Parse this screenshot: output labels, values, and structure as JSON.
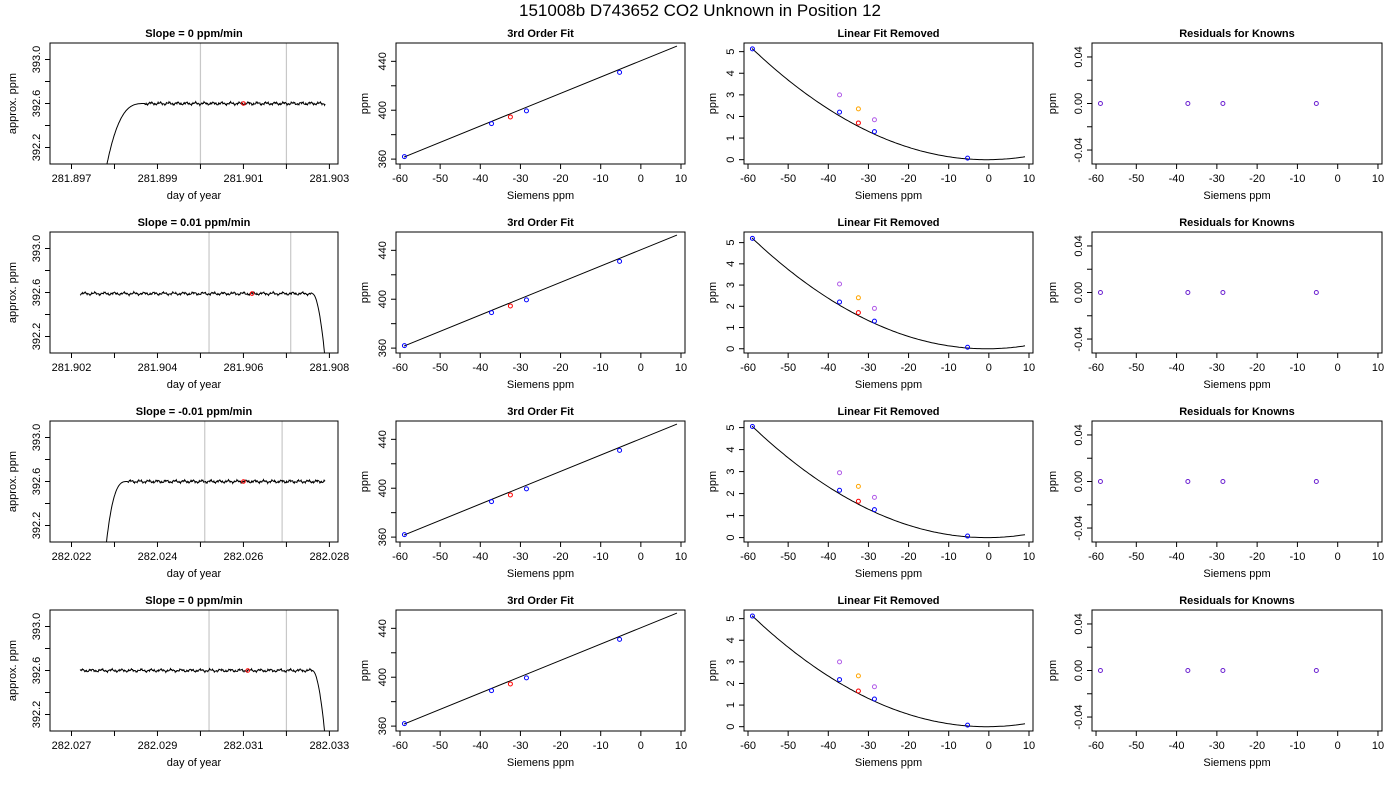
{
  "page": {
    "title": "151008b      D743652    CO2 Unknown in Position  12"
  },
  "colors": {
    "trace": "#000000",
    "cursor_lines": "#c8c8c8",
    "known_points": "#0000ff",
    "unknown_point": "#ff0000",
    "unknown_raw_orange": "#ffa500",
    "unknown_raw_violet": "#b05ae8",
    "residual_points": "#6a1fd0"
  },
  "chart_data": [
    {
      "type": "line",
      "row": 1,
      "col": 1,
      "title": "Slope =  0  ppm/min",
      "xlabel": "day of year",
      "ylabel": "approx. ppm",
      "xlim": [
        281.8965,
        281.9032
      ],
      "ylim": [
        392.05,
        393.15
      ],
      "xticks": [
        "281.897",
        "281.898",
        "281.899",
        "281.900",
        "281.901",
        "281.902",
        "281.903"
      ],
      "xtick_labels": [
        "281.897",
        "",
        "281.899",
        "",
        "281.901",
        "",
        "281.903"
      ],
      "yticks": [
        392.2,
        392.4,
        392.6,
        392.8,
        393.0
      ],
      "ytick_labels": [
        "392.2",
        "",
        "392.6",
        "",
        "393.0"
      ],
      "vlines": [
        281.9,
        281.902
      ],
      "trace": {
        "start": 281.8978,
        "end": 281.9029,
        "level": 392.6,
        "profile": "rise",
        "transition": 281.8987
      },
      "marker": {
        "x": 281.901,
        "y": 392.6
      }
    },
    {
      "type": "line",
      "row": 1,
      "col": 2,
      "title": "3rd Order Fit",
      "xlabel": "Siemens ppm",
      "ylabel": "ppm",
      "xlim": [
        -61,
        11
      ],
      "ylim": [
        356,
        455
      ],
      "xticks": [
        -60,
        -50,
        -40,
        -30,
        -20,
        -10,
        0,
        10
      ],
      "xtick_labels": [
        "-60",
        "-50",
        "-40",
        "-30",
        "-20",
        "-10",
        "0",
        "10"
      ],
      "yticks": [
        360,
        380,
        400,
        420,
        440
      ],
      "ytick_labels": [
        "360",
        "",
        "400",
        "",
        "440"
      ],
      "fit_line": {
        "x": [
          -59,
          9
        ],
        "y": [
          361.7,
          452.5
        ]
      },
      "knowns": [
        {
          "x": -58.9,
          "y": 362
        },
        {
          "x": -37.2,
          "y": 389
        },
        {
          "x": -28.5,
          "y": 399.5
        },
        {
          "x": -5.3,
          "y": 431
        }
      ],
      "unknown": {
        "x": -32.5,
        "y": 394.5
      }
    },
    {
      "type": "line",
      "row": 1,
      "col": 3,
      "title": "Linear Fit Removed",
      "xlabel": "Siemens ppm",
      "ylabel": "ppm",
      "xlim": [
        -61,
        11
      ],
      "ylim": [
        -0.2,
        5.4
      ],
      "xticks": [
        -60,
        -50,
        -40,
        -30,
        -20,
        -10,
        0,
        10
      ],
      "xtick_labels": [
        "-60",
        "-50",
        "-40",
        "-30",
        "-20",
        "-10",
        "0",
        "10"
      ],
      "yticks": [
        0,
        1,
        2,
        3,
        4,
        5
      ],
      "ytick_labels": [
        "0",
        "1",
        "2",
        "3",
        "4",
        "5"
      ],
      "curve": {
        "vertex": -0.5,
        "from": -59,
        "to": 9
      },
      "knowns": [
        {
          "x": -58.9,
          "y": 5.13
        },
        {
          "x": -37.2,
          "y": 2.2
        },
        {
          "x": -28.5,
          "y": 1.3
        },
        {
          "x": -5.3,
          "y": 0.07
        }
      ],
      "unknown": {
        "x": -32.5,
        "y": 1.7
      },
      "raw": [
        {
          "x": -32.5,
          "y": 2.35,
          "color": "orange"
        },
        {
          "x": -37.2,
          "y": 3.0,
          "color": "violet"
        },
        {
          "x": -28.5,
          "y": 1.85,
          "color": "violet"
        }
      ]
    },
    {
      "type": "scatter",
      "row": 1,
      "col": 4,
      "title": "Residuals for Knowns",
      "xlabel": "Siemens ppm",
      "ylabel": "ppm",
      "xlim": [
        -61,
        11
      ],
      "ylim": [
        -0.052,
        0.052
      ],
      "xticks": [
        -60,
        -50,
        -40,
        -30,
        -20,
        -10,
        0,
        10
      ],
      "xtick_labels": [
        "-60",
        "-50",
        "-40",
        "-30",
        "-20",
        "-10",
        "0",
        "10"
      ],
      "yticks": [
        -0.04,
        -0.02,
        0,
        0.02,
        0.04
      ],
      "ytick_labels": [
        "-0.04",
        "",
        "0.00",
        "",
        "0.04"
      ],
      "residuals": [
        {
          "x": -58.9,
          "y": 0
        },
        {
          "x": -37.2,
          "y": 0
        },
        {
          "x": -28.5,
          "y": 0
        },
        {
          "x": -5.3,
          "y": 0
        }
      ]
    },
    {
      "type": "line",
      "row": 2,
      "col": 1,
      "title": "Slope =  0.01  ppm/min",
      "xlabel": "day of year",
      "ylabel": "approx. ppm",
      "xlim": [
        281.9015,
        281.9082
      ],
      "ylim": [
        392.05,
        393.15
      ],
      "xticks": [
        "281.902",
        "281.903",
        "281.904",
        "281.905",
        "281.906",
        "281.907",
        "281.908"
      ],
      "xtick_labels": [
        "281.902",
        "",
        "281.904",
        "",
        "281.906",
        "",
        "281.908"
      ],
      "yticks": [
        392.2,
        392.4,
        392.6,
        392.8,
        393.0
      ],
      "ytick_labels": [
        "392.2",
        "",
        "392.6",
        "",
        "393.0"
      ],
      "vlines": [
        281.9052,
        281.9071
      ],
      "trace": {
        "start": 281.9022,
        "end": 281.9079,
        "level": 392.59,
        "profile": "fall",
        "transition": 281.9076
      },
      "marker": {
        "x": 281.9062,
        "y": 392.59
      }
    },
    {
      "type": "line",
      "row": 2,
      "col": 2,
      "title": "3rd Order Fit",
      "xlabel": "Siemens ppm",
      "ylabel": "ppm",
      "xlim": [
        -61,
        11
      ],
      "ylim": [
        356,
        455
      ],
      "xticks": [
        -60,
        -50,
        -40,
        -30,
        -20,
        -10,
        0,
        10
      ],
      "xtick_labels": [
        "-60",
        "-50",
        "-40",
        "-30",
        "-20",
        "-10",
        "0",
        "10"
      ],
      "yticks": [
        360,
        380,
        400,
        420,
        440
      ],
      "ytick_labels": [
        "360",
        "",
        "400",
        "",
        "440"
      ],
      "fit_line": {
        "x": [
          -59,
          9
        ],
        "y": [
          361.7,
          452.5
        ]
      },
      "knowns": [
        {
          "x": -58.9,
          "y": 362
        },
        {
          "x": -37.2,
          "y": 389
        },
        {
          "x": -28.5,
          "y": 399.5
        },
        {
          "x": -5.3,
          "y": 431
        }
      ],
      "unknown": {
        "x": -32.5,
        "y": 394.5
      }
    },
    {
      "type": "line",
      "row": 2,
      "col": 3,
      "title": "Linear Fit Removed",
      "xlabel": "Siemens ppm",
      "ylabel": "ppm",
      "xlim": [
        -61,
        11
      ],
      "ylim": [
        -0.2,
        5.5
      ],
      "xticks": [
        -60,
        -50,
        -40,
        -30,
        -20,
        -10,
        0,
        10
      ],
      "xtick_labels": [
        "-60",
        "-50",
        "-40",
        "-30",
        "-20",
        "-10",
        "0",
        "10"
      ],
      "yticks": [
        0,
        1,
        2,
        3,
        4,
        5
      ],
      "ytick_labels": [
        "0",
        "1",
        "2",
        "3",
        "4",
        "5"
      ],
      "curve": {
        "vertex": -0.5,
        "from": -59,
        "to": 9
      },
      "knowns": [
        {
          "x": -58.9,
          "y": 5.2
        },
        {
          "x": -37.2,
          "y": 2.2
        },
        {
          "x": -28.5,
          "y": 1.3
        },
        {
          "x": -5.3,
          "y": 0.07
        }
      ],
      "unknown": {
        "x": -32.5,
        "y": 1.7
      },
      "raw": [
        {
          "x": -32.5,
          "y": 2.4,
          "color": "orange"
        },
        {
          "x": -37.2,
          "y": 3.05,
          "color": "violet"
        },
        {
          "x": -28.5,
          "y": 1.9,
          "color": "violet"
        }
      ]
    },
    {
      "type": "scatter",
      "row": 2,
      "col": 4,
      "title": "Residuals for Knowns",
      "xlabel": "Siemens ppm",
      "ylabel": "ppm",
      "xlim": [
        -61,
        11
      ],
      "ylim": [
        -0.052,
        0.052
      ],
      "xticks": [
        -60,
        -50,
        -40,
        -30,
        -20,
        -10,
        0,
        10
      ],
      "xtick_labels": [
        "-60",
        "-50",
        "-40",
        "-30",
        "-20",
        "-10",
        "0",
        "10"
      ],
      "yticks": [
        -0.04,
        -0.02,
        0,
        0.02,
        0.04
      ],
      "ytick_labels": [
        "-0.04",
        "",
        "0.00",
        "",
        "0.04"
      ],
      "residuals": [
        {
          "x": -58.9,
          "y": 0
        },
        {
          "x": -37.2,
          "y": 0
        },
        {
          "x": -28.5,
          "y": 0
        },
        {
          "x": -5.3,
          "y": 0
        }
      ]
    },
    {
      "type": "line",
      "row": 3,
      "col": 1,
      "title": "Slope =  -0.01  ppm/min",
      "xlabel": "day of year",
      "ylabel": "approx. ppm",
      "xlim": [
        282.0215,
        282.0282
      ],
      "ylim": [
        392.05,
        393.15
      ],
      "xticks": [
        "282.022",
        "282.023",
        "282.024",
        "282.025",
        "282.026",
        "282.027",
        "282.028"
      ],
      "xtick_labels": [
        "282.022",
        "",
        "282.024",
        "",
        "282.026",
        "",
        "282.028"
      ],
      "yticks": [
        392.2,
        392.4,
        392.6,
        392.8,
        393.0
      ],
      "ytick_labels": [
        "392.2",
        "",
        "392.6",
        "",
        "393.0"
      ],
      "vlines": [
        282.0251,
        282.0269
      ],
      "trace": {
        "start": 282.0228,
        "end": 282.0279,
        "level": 392.6,
        "profile": "rise",
        "transition": 282.0233
      },
      "marker": {
        "x": 282.026,
        "y": 392.6
      }
    },
    {
      "type": "line",
      "row": 3,
      "col": 2,
      "title": "3rd Order Fit",
      "xlabel": "Siemens ppm",
      "ylabel": "ppm",
      "xlim": [
        -61,
        11
      ],
      "ylim": [
        356,
        455
      ],
      "xticks": [
        -60,
        -50,
        -40,
        -30,
        -20,
        -10,
        0,
        10
      ],
      "xtick_labels": [
        "-60",
        "-50",
        "-40",
        "-30",
        "-20",
        "-10",
        "0",
        "10"
      ],
      "yticks": [
        360,
        380,
        400,
        420,
        440
      ],
      "ytick_labels": [
        "360",
        "",
        "400",
        "",
        "440"
      ],
      "fit_line": {
        "x": [
          -59,
          9
        ],
        "y": [
          361.7,
          452.5
        ]
      },
      "knowns": [
        {
          "x": -58.9,
          "y": 362
        },
        {
          "x": -37.2,
          "y": 389
        },
        {
          "x": -28.5,
          "y": 399.5
        },
        {
          "x": -5.3,
          "y": 431
        }
      ],
      "unknown": {
        "x": -32.5,
        "y": 394.5
      }
    },
    {
      "type": "line",
      "row": 3,
      "col": 3,
      "title": "Linear Fit Removed",
      "xlabel": "Siemens ppm",
      "ylabel": "ppm",
      "xlim": [
        -61,
        11
      ],
      "ylim": [
        -0.2,
        5.3
      ],
      "xticks": [
        -60,
        -50,
        -40,
        -30,
        -20,
        -10,
        0,
        10
      ],
      "xtick_labels": [
        "-60",
        "-50",
        "-40",
        "-30",
        "-20",
        "-10",
        "0",
        "10"
      ],
      "yticks": [
        0,
        1,
        2,
        3,
        4,
        5
      ],
      "ytick_labels": [
        "0",
        "1",
        "2",
        "3",
        "4",
        "5"
      ],
      "curve": {
        "vertex": -0.5,
        "from": -59,
        "to": 9
      },
      "knowns": [
        {
          "x": -58.9,
          "y": 5.05
        },
        {
          "x": -37.2,
          "y": 2.15
        },
        {
          "x": -28.5,
          "y": 1.27
        },
        {
          "x": -5.3,
          "y": 0.07
        }
      ],
      "unknown": {
        "x": -32.5,
        "y": 1.65
      },
      "raw": [
        {
          "x": -32.5,
          "y": 2.33,
          "color": "orange"
        },
        {
          "x": -37.2,
          "y": 2.95,
          "color": "violet"
        },
        {
          "x": -28.5,
          "y": 1.83,
          "color": "violet"
        }
      ]
    },
    {
      "type": "scatter",
      "row": 3,
      "col": 4,
      "title": "Residuals for Knowns",
      "xlabel": "Siemens ppm",
      "ylabel": "ppm",
      "xlim": [
        -61,
        11
      ],
      "ylim": [
        -0.052,
        0.052
      ],
      "xticks": [
        -60,
        -50,
        -40,
        -30,
        -20,
        -10,
        0,
        10
      ],
      "xtick_labels": [
        "-60",
        "-50",
        "-40",
        "-30",
        "-20",
        "-10",
        "0",
        "10"
      ],
      "yticks": [
        -0.04,
        -0.02,
        0,
        0.02,
        0.04
      ],
      "ytick_labels": [
        "-0.04",
        "",
        "0.00",
        "",
        "0.04"
      ],
      "residuals": [
        {
          "x": -58.9,
          "y": 0
        },
        {
          "x": -37.2,
          "y": 0
        },
        {
          "x": -28.5,
          "y": 0
        },
        {
          "x": -5.3,
          "y": 0
        }
      ]
    },
    {
      "type": "line",
      "row": 4,
      "col": 1,
      "title": "Slope =  0  ppm/min",
      "xlabel": "day of year",
      "ylabel": "approx. ppm",
      "xlim": [
        282.0265,
        282.0332
      ],
      "ylim": [
        392.05,
        393.15
      ],
      "xticks": [
        "282.027",
        "282.028",
        "282.029",
        "282.030",
        "282.031",
        "282.032",
        "282.033"
      ],
      "xtick_labels": [
        "282.027",
        "",
        "282.029",
        "",
        "282.031",
        "",
        "282.033"
      ],
      "yticks": [
        392.2,
        392.4,
        392.6,
        392.8,
        393.0
      ],
      "ytick_labels": [
        "392.2",
        "",
        "392.6",
        "",
        "393.0"
      ],
      "vlines": [
        282.0302,
        282.032
      ],
      "trace": {
        "start": 282.0272,
        "end": 282.0329,
        "level": 392.6,
        "profile": "fall",
        "transition": 282.0326
      },
      "marker": {
        "x": 282.0311,
        "y": 392.6
      }
    },
    {
      "type": "line",
      "row": 4,
      "col": 2,
      "title": "3rd Order Fit",
      "xlabel": "Siemens ppm",
      "ylabel": "ppm",
      "xlim": [
        -61,
        11
      ],
      "ylim": [
        356,
        455
      ],
      "xticks": [
        -60,
        -50,
        -40,
        -30,
        -20,
        -10,
        0,
        10
      ],
      "xtick_labels": [
        "-60",
        "-50",
        "-40",
        "-30",
        "-20",
        "-10",
        "0",
        "10"
      ],
      "yticks": [
        360,
        380,
        400,
        420,
        440
      ],
      "ytick_labels": [
        "360",
        "",
        "400",
        "",
        "440"
      ],
      "fit_line": {
        "x": [
          -59,
          9
        ],
        "y": [
          361.7,
          452.5
        ]
      },
      "knowns": [
        {
          "x": -58.9,
          "y": 362
        },
        {
          "x": -37.2,
          "y": 389
        },
        {
          "x": -28.5,
          "y": 399.5
        },
        {
          "x": -5.3,
          "y": 431
        }
      ],
      "unknown": {
        "x": -32.5,
        "y": 394.5
      }
    },
    {
      "type": "line",
      "row": 4,
      "col": 3,
      "title": "Linear Fit Removed",
      "xlabel": "Siemens ppm",
      "ylabel": "ppm",
      "xlim": [
        -61,
        11
      ],
      "ylim": [
        -0.2,
        5.4
      ],
      "xticks": [
        -60,
        -50,
        -40,
        -30,
        -20,
        -10,
        0,
        10
      ],
      "xtick_labels": [
        "-60",
        "-50",
        "-40",
        "-30",
        "-20",
        "-10",
        "0",
        "10"
      ],
      "yticks": [
        0,
        1,
        2,
        3,
        4,
        5
      ],
      "ytick_labels": [
        "0",
        "1",
        "2",
        "3",
        "4",
        "5"
      ],
      "curve": {
        "vertex": -0.5,
        "from": -59,
        "to": 9
      },
      "knowns": [
        {
          "x": -58.9,
          "y": 5.12
        },
        {
          "x": -37.2,
          "y": 2.18
        },
        {
          "x": -28.5,
          "y": 1.28
        },
        {
          "x": -5.3,
          "y": 0.07
        }
      ],
      "unknown": {
        "x": -32.5,
        "y": 1.65
      },
      "raw": [
        {
          "x": -32.5,
          "y": 2.35,
          "color": "orange"
        },
        {
          "x": -37.2,
          "y": 3.0,
          "color": "violet"
        },
        {
          "x": -28.5,
          "y": 1.85,
          "color": "violet"
        }
      ]
    },
    {
      "type": "scatter",
      "row": 4,
      "col": 4,
      "title": "Residuals for Knowns",
      "xlabel": "Siemens ppm",
      "ylabel": "ppm",
      "xlim": [
        -61,
        11
      ],
      "ylim": [
        -0.052,
        0.052
      ],
      "xticks": [
        -60,
        -50,
        -40,
        -30,
        -20,
        -10,
        0,
        10
      ],
      "xtick_labels": [
        "-60",
        "-50",
        "-40",
        "-30",
        "-20",
        "-10",
        "0",
        "10"
      ],
      "yticks": [
        -0.04,
        -0.02,
        0,
        0.02,
        0.04
      ],
      "ytick_labels": [
        "-0.04",
        "",
        "0.00",
        "",
        "0.04"
      ],
      "residuals": [
        {
          "x": -58.9,
          "y": 0
        },
        {
          "x": -37.2,
          "y": 0
        },
        {
          "x": -28.5,
          "y": 0
        },
        {
          "x": -5.3,
          "y": 0
        }
      ]
    }
  ]
}
